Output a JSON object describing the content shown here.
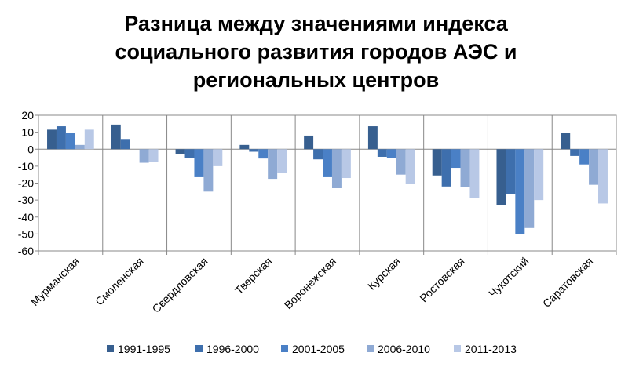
{
  "chart_data": {
    "type": "bar",
    "title_lines": [
      "Разница между значениями индекса",
      "социального развития городов АЭС и",
      "региональных центров"
    ],
    "categories": [
      "Мурманская",
      "Смоленская",
      "Свердловская",
      "Тверская",
      "Воронежская",
      "Курская",
      "Ростовская",
      "Чукотский",
      "Саратовская"
    ],
    "series": [
      {
        "name": "1991-1995",
        "color": "#375f8f",
        "values": [
          11.5,
          14.5,
          -3,
          2.5,
          8,
          13.5,
          -15.5,
          -33,
          9.5
        ]
      },
      {
        "name": "1996-2000",
        "color": "#3e6fad",
        "values": [
          13.5,
          6,
          -5,
          -1.5,
          -6,
          -4.5,
          -22,
          -26.5,
          -4
        ]
      },
      {
        "name": "2001-2005",
        "color": "#4a80c6",
        "values": [
          9.5,
          0,
          -16.5,
          -5.5,
          -16.5,
          -5,
          -11,
          -50,
          -9
        ]
      },
      {
        "name": "2006-2010",
        "color": "#8faad4",
        "values": [
          2.5,
          -8,
          -25,
          -17.5,
          -23,
          -15,
          -22.5,
          -46.5,
          -21
        ]
      },
      {
        "name": "2011-2013",
        "color": "#b8c8e6",
        "values": [
          11.5,
          -7.5,
          -10,
          -14,
          -17,
          -20.5,
          -29,
          -30,
          -32
        ]
      }
    ],
    "ylim": [
      -60,
      20
    ],
    "yticks": [
      20,
      10,
      0,
      -10,
      -20,
      -30,
      -40,
      -50,
      -60
    ],
    "grid": false,
    "legend_position": "bottom"
  }
}
